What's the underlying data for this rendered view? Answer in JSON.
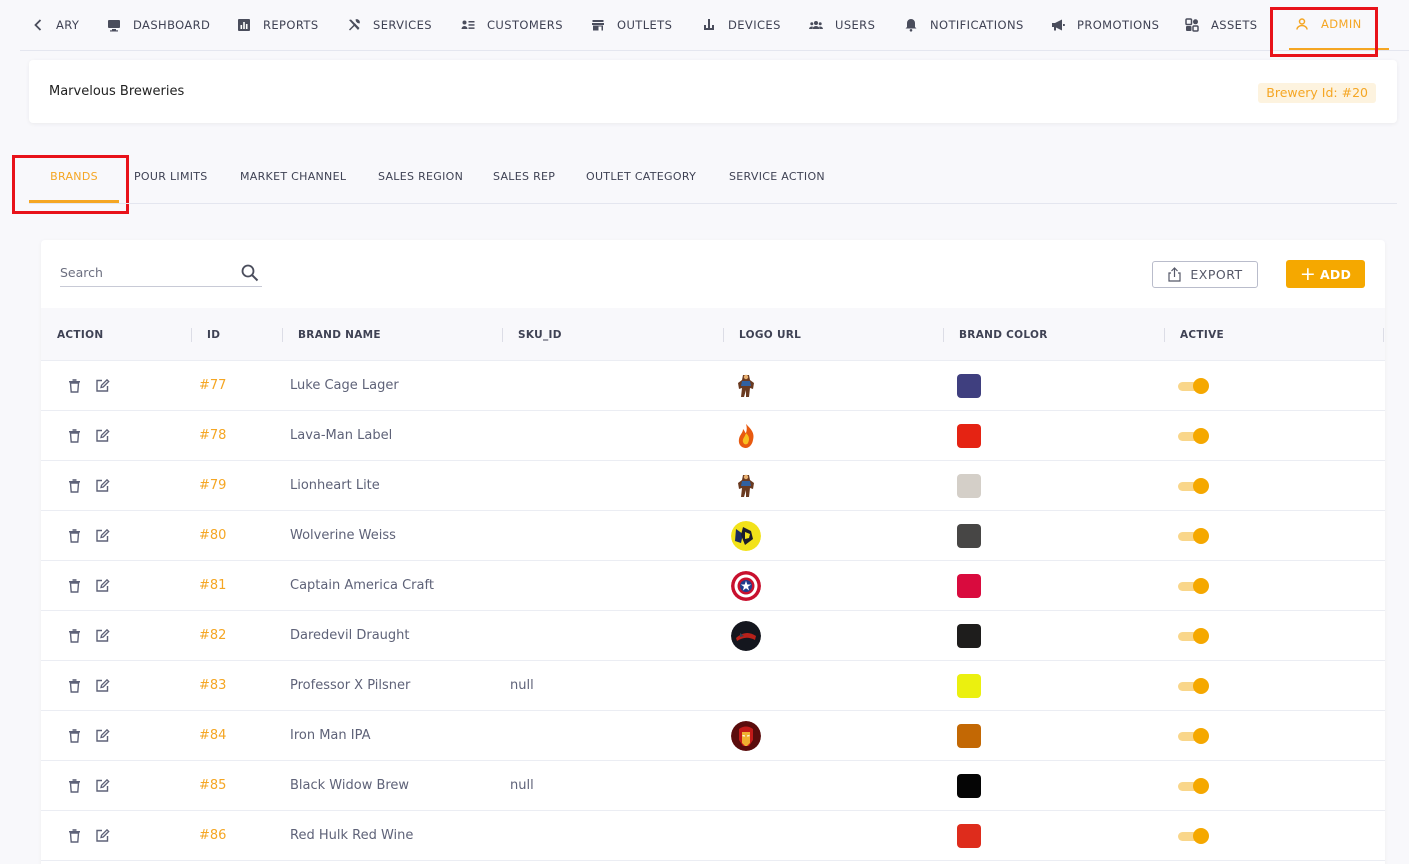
{
  "nav": {
    "items": [
      {
        "label": "ARY",
        "icon": "chevron-left-icon"
      },
      {
        "label": "DASHBOARD",
        "icon": "monitor-icon"
      },
      {
        "label": "REPORTS",
        "icon": "bar-chart-icon"
      },
      {
        "label": "SERVICES",
        "icon": "tools-icon"
      },
      {
        "label": "CUSTOMERS",
        "icon": "contact-list-icon"
      },
      {
        "label": "OUTLETS",
        "icon": "store-icon"
      },
      {
        "label": "DEVICES",
        "icon": "device-icon"
      },
      {
        "label": "USERS",
        "icon": "users-icon"
      },
      {
        "label": "NOTIFICATIONS",
        "icon": "bell-icon"
      },
      {
        "label": "PROMOTIONS",
        "icon": "megaphone-icon"
      },
      {
        "label": "ASSETS",
        "icon": "assets-icon"
      },
      {
        "label": "ADMIN",
        "icon": "person-icon",
        "active": true
      }
    ]
  },
  "brewery": {
    "name": "Marvelous Breweries",
    "id_label": "Brewery Id: #20"
  },
  "subtabs": [
    {
      "label": "BRANDS",
      "active": true
    },
    {
      "label": "POUR LIMITS"
    },
    {
      "label": "MARKET CHANNEL"
    },
    {
      "label": "SALES REGION"
    },
    {
      "label": "SALES REP"
    },
    {
      "label": "OUTLET CATEGORY"
    },
    {
      "label": "SERVICE ACTION"
    }
  ],
  "toolbar": {
    "search_placeholder": "Search",
    "export_label": "EXPORT",
    "add_label": "ADD"
  },
  "table": {
    "columns": [
      "ACTION",
      "ID",
      "BRAND NAME",
      "SKU_ID",
      "LOGO URL",
      "BRAND COLOR",
      "ACTIVE"
    ],
    "rows": [
      {
        "id": "#77",
        "name": "Luke Cage Lager",
        "sku": "",
        "logo": "figure-logo",
        "color": "#3f3f7f",
        "active": true
      },
      {
        "id": "#78",
        "name": "Lava-Man Label",
        "sku": "",
        "logo": "flame-logo",
        "color": "#e52313",
        "active": true
      },
      {
        "id": "#79",
        "name": "Lionheart Lite",
        "sku": "",
        "logo": "figure-logo",
        "color": "#d4cfc8",
        "active": true
      },
      {
        "id": "#80",
        "name": "Wolverine Weiss",
        "sku": "",
        "logo": "yellow-badge-logo",
        "color": "#474645",
        "active": true
      },
      {
        "id": "#81",
        "name": "Captain America Craft",
        "sku": "",
        "logo": "shield-logo",
        "color": "#d90b3e",
        "active": true
      },
      {
        "id": "#82",
        "name": "Daredevil Draught",
        "sku": "",
        "logo": "dark-badge-logo",
        "color": "#1e1d1c",
        "active": true
      },
      {
        "id": "#83",
        "name": "Professor X Pilsner",
        "sku": "null",
        "logo": "",
        "color": "#ebf00f",
        "active": true
      },
      {
        "id": "#84",
        "name": "Iron Man IPA",
        "sku": "",
        "logo": "helmet-logo",
        "color": "#c36804",
        "active": true
      },
      {
        "id": "#85",
        "name": "Black Widow Brew",
        "sku": "null",
        "logo": "",
        "color": "#050505",
        "active": true
      },
      {
        "id": "#86",
        "name": "Red Hulk Red Wine",
        "sku": "",
        "logo": "",
        "color": "#de2c1c",
        "active": true
      }
    ]
  },
  "colors": {
    "accent": "#f5a623",
    "highlight": "#e8121a"
  }
}
